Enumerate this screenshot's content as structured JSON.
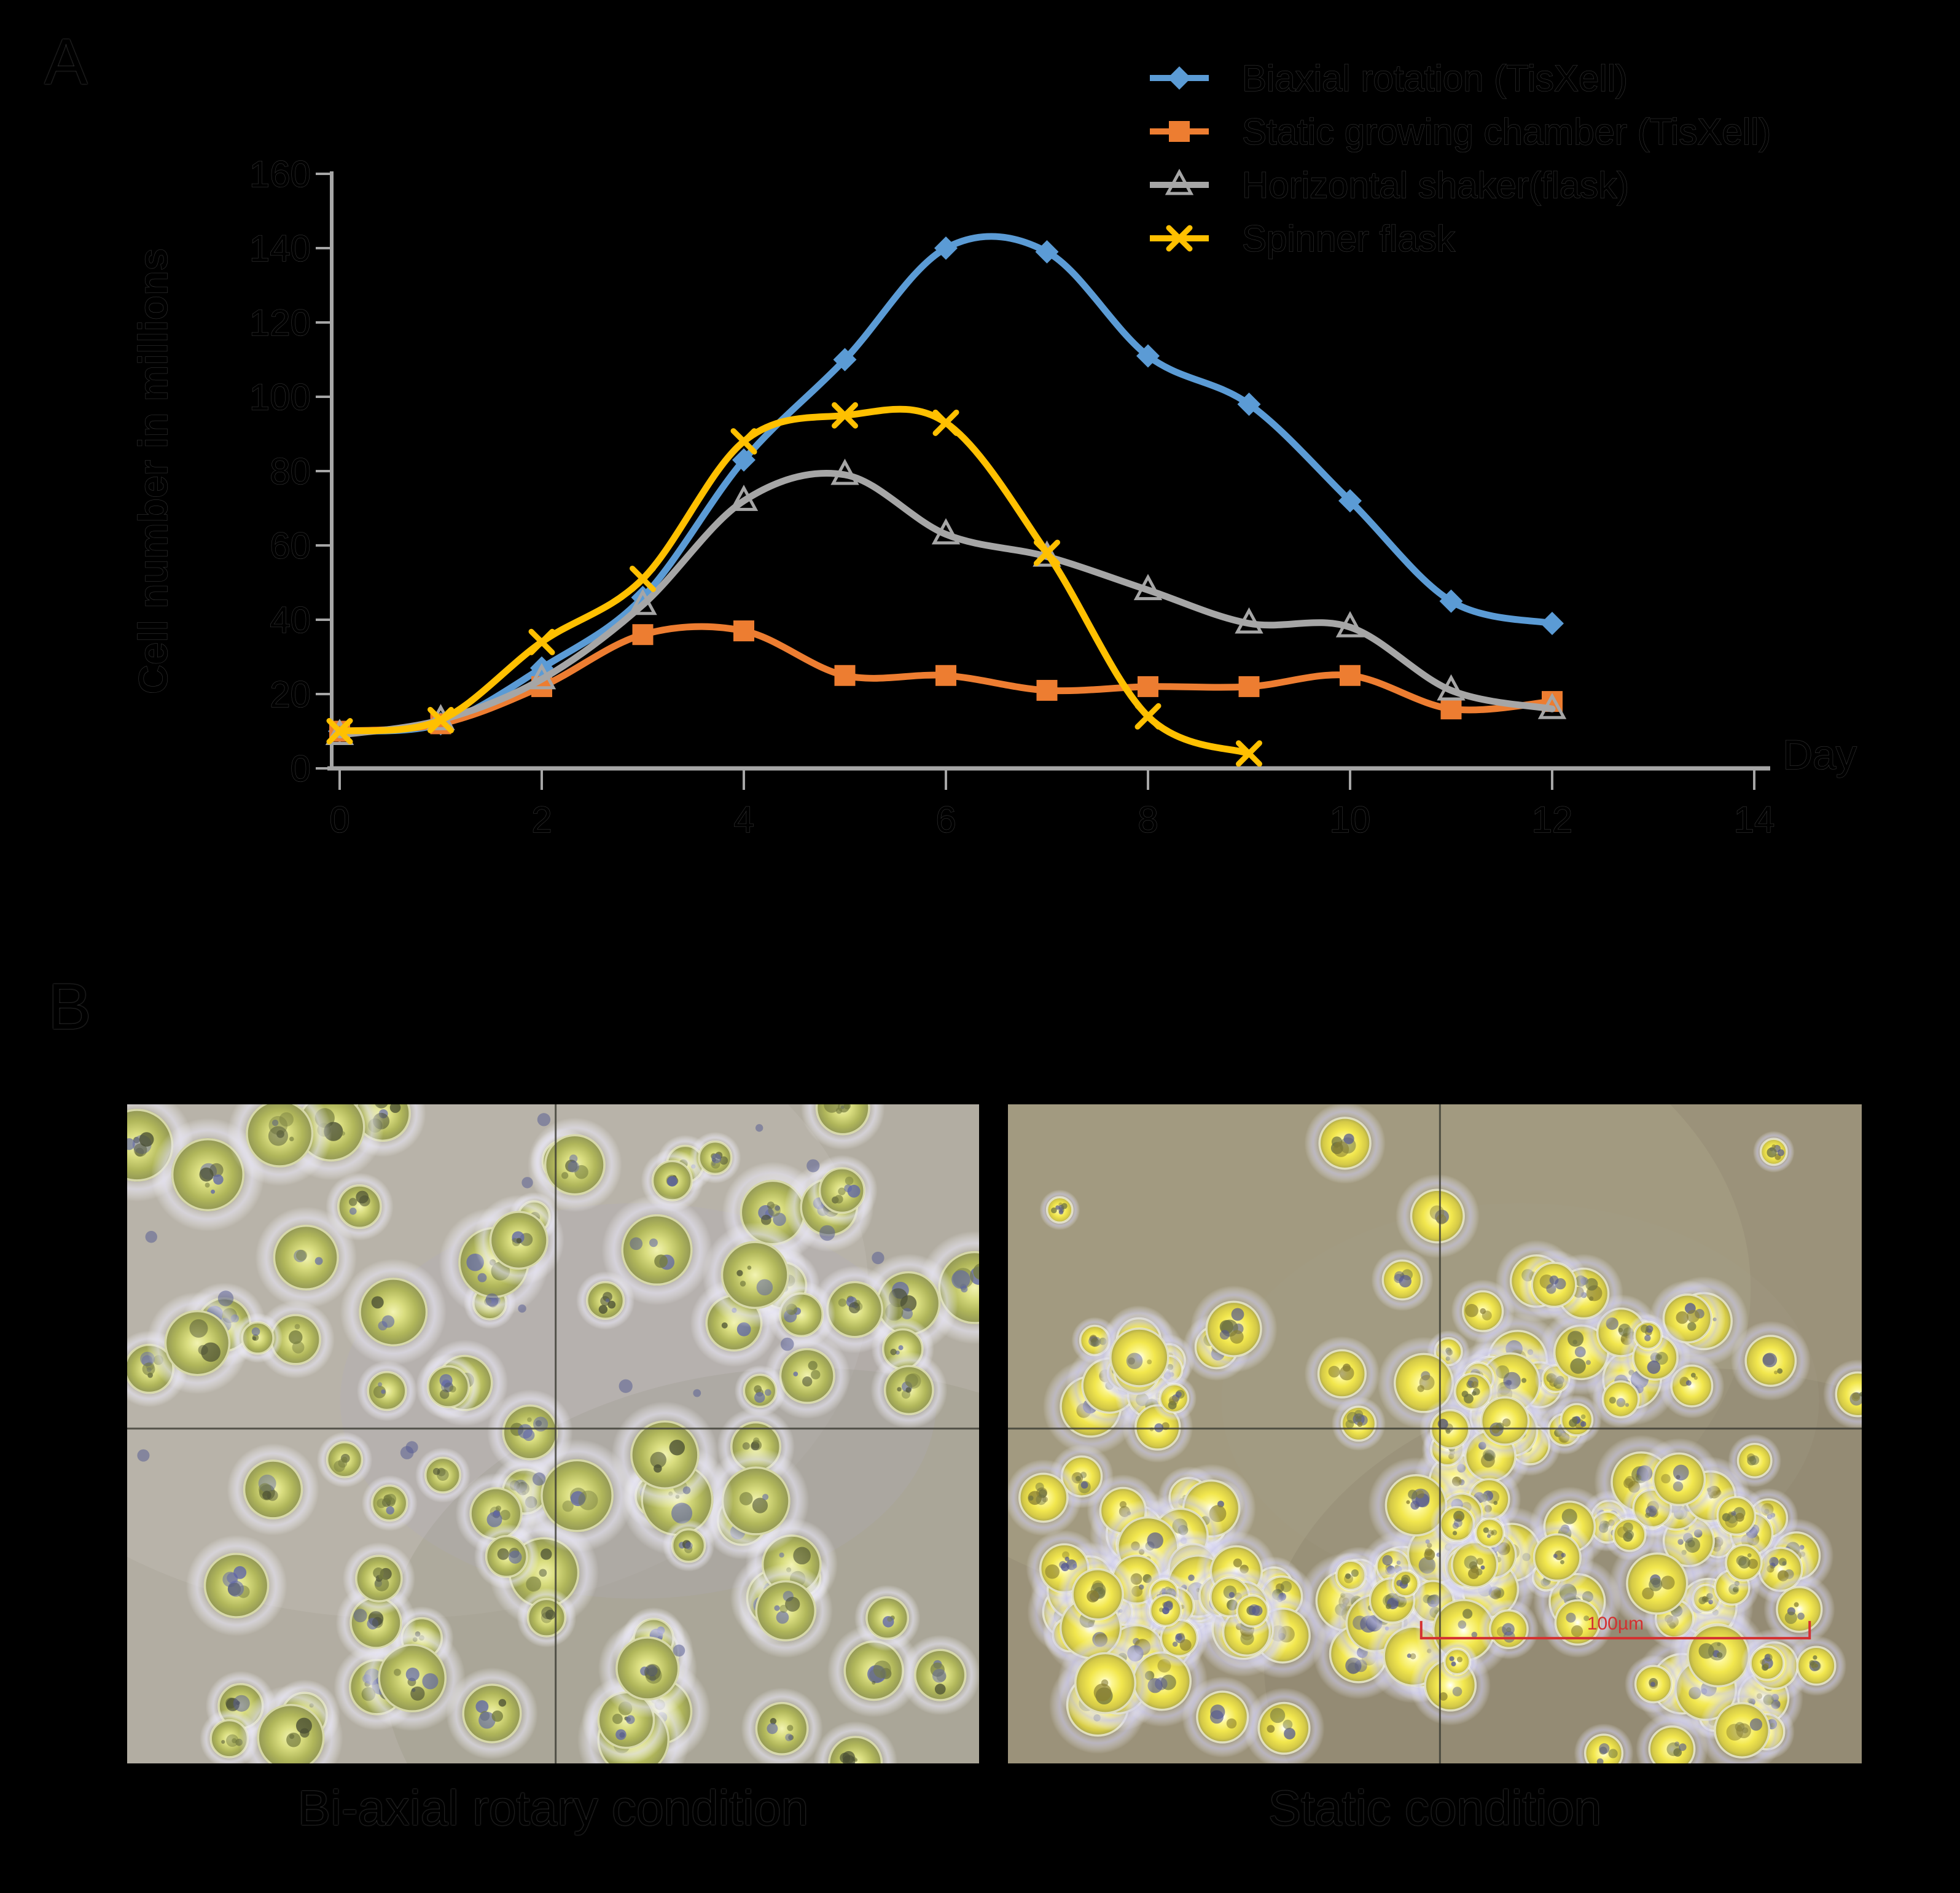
{
  "figure": {
    "background": "#000000"
  },
  "panel_a": {
    "label": "A",
    "axis": {
      "y_title": "Cell number in millions",
      "x_title": "Day",
      "axis_color": "#A6A6A6",
      "text_color": "#000000"
    },
    "legend": [
      {
        "label": "Biaxial rotation (TisXell)",
        "marker": "diamond",
        "color": "#5B9BD5"
      },
      {
        "label": "Static growing chamber (TisXell)",
        "marker": "square",
        "color": "#ED7D31"
      },
      {
        "label": "Horizontal shaker(flask)",
        "marker": "triangle",
        "color": "#A6A6A6"
      },
      {
        "label": "Spinner flask",
        "marker": "x",
        "color": "#FFC000"
      }
    ]
  },
  "chart_data": {
    "type": "line",
    "title": "",
    "xlabel": "Day",
    "ylabel": "Cell number in millions",
    "xlim": [
      0,
      14
    ],
    "ylim": [
      0,
      160
    ],
    "x_ticks": [
      0,
      2,
      4,
      6,
      8,
      10,
      12,
      14
    ],
    "y_ticks": [
      0,
      20,
      40,
      60,
      80,
      100,
      120,
      140,
      160
    ],
    "grid": false,
    "smooth": true,
    "legend_position": "top-right",
    "series": [
      {
        "name": "Biaxial rotation (TisXell)",
        "color": "#5B9BD5",
        "marker": "diamond",
        "x": [
          0,
          1,
          2,
          3,
          4,
          5,
          6,
          7,
          8,
          9,
          10,
          11,
          12
        ],
        "y": [
          10,
          12,
          27,
          46,
          83,
          110,
          140,
          139,
          111,
          98,
          72,
          45,
          39
        ]
      },
      {
        "name": "Static growing chamber (TisXell)",
        "color": "#ED7D31",
        "marker": "square",
        "x": [
          0,
          1,
          2,
          3,
          4,
          5,
          6,
          7,
          8,
          9,
          10,
          11,
          12
        ],
        "y": [
          10,
          12,
          22,
          36,
          37,
          25,
          25,
          21,
          22,
          22,
          25,
          16,
          18
        ]
      },
      {
        "name": "Horizontal shaker(flask)",
        "color": "#A6A6A6",
        "marker": "triangle",
        "x": [
          0,
          1,
          2,
          3,
          4,
          5,
          6,
          7,
          8,
          9,
          10,
          11,
          12
        ],
        "y": [
          9,
          13,
          24,
          44,
          72,
          79,
          63,
          57,
          48,
          39,
          38,
          21,
          16
        ]
      },
      {
        "name": "Spinner flask",
        "color": "#FFC000",
        "marker": "x",
        "x": [
          0,
          1,
          2,
          3,
          4,
          5,
          6,
          7,
          8,
          9
        ],
        "y": [
          10,
          13,
          34,
          51,
          88,
          95,
          93,
          58,
          14,
          4
        ]
      }
    ]
  },
  "panel_b": {
    "label": "B",
    "images": [
      {
        "caption": "Bi-axial rotary condition",
        "kind": "phase-contrast micrograph",
        "cell_density": "sparse",
        "crosshair": true,
        "palette": {
          "background": "#B2ADA2",
          "cell_body": "#D9DD7F",
          "cell_rim": "#F8F8D2",
          "halo": "#E8E6F6",
          "speckle_blue": "#5F66A8",
          "speckle_olive": "#767D3F"
        }
      },
      {
        "caption": "Static condition",
        "kind": "phase-contrast micrograph",
        "cell_density": "dense-clustered",
        "crosshair": true,
        "scale_bar": {
          "label": "100µm",
          "color": "#D43030"
        },
        "palette": {
          "background": "#9B927A",
          "cell_body": "#F2E74E",
          "cell_rim": "#FFFFFF",
          "halo": "#CDCBEC",
          "speckle_blue": "#55598F",
          "speckle_olive": "#6B7040"
        }
      }
    ]
  }
}
